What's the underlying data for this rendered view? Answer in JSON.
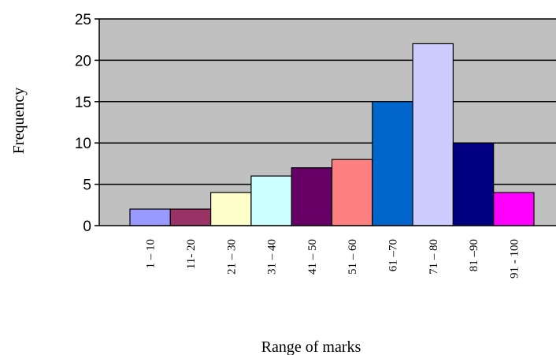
{
  "chart_data": {
    "type": "bar",
    "title": "",
    "xlabel": "Range of marks",
    "ylabel": "Frequency",
    "ylim": [
      0,
      25
    ],
    "yticks": [
      0,
      5,
      10,
      15,
      20,
      25
    ],
    "grid": true,
    "legend": "none",
    "plot_background": "#C0C0C0",
    "categories": [
      "1 – 10",
      "11- 20",
      "21 – 30",
      "31 – 40",
      "41 – 50",
      "51 – 60",
      "61 –70",
      "71 – 80",
      "81 –90",
      "91 - 100"
    ],
    "values": [
      2,
      2,
      4,
      6,
      7,
      8,
      15,
      22,
      10,
      4
    ],
    "colors": [
      "#9999FF",
      "#993366",
      "#FFFFCC",
      "#CCFFFF",
      "#660066",
      "#FF8080",
      "#0066CC",
      "#CCCCFF",
      "#000080",
      "#FF00FF"
    ]
  }
}
